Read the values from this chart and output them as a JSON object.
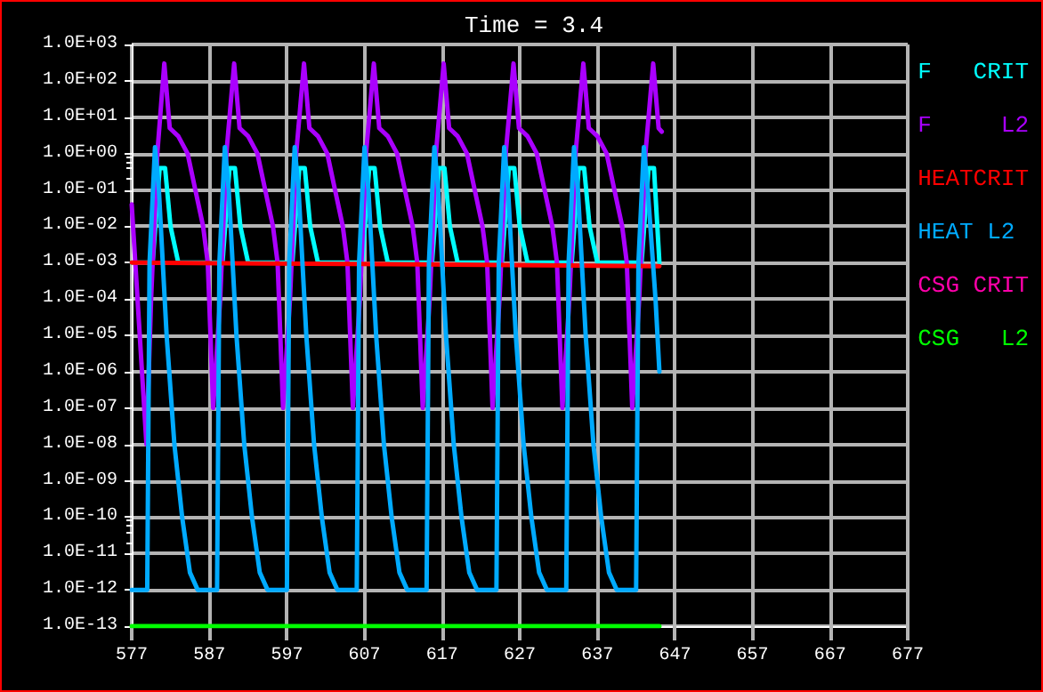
{
  "chart_data": {
    "type": "line",
    "title": "Time = 3.4",
    "log": "y",
    "grid": true,
    "legend": "right",
    "marker": "none",
    "line_style": "solid",
    "xlim": [
      577,
      677
    ],
    "xticks": [
      577,
      587,
      597,
      607,
      617,
      627,
      637,
      647,
      657,
      667,
      677
    ],
    "ylim": [
      1e-13,
      1000
    ],
    "yticks": [
      {
        "value": 1000,
        "label": "1.0E+03"
      },
      {
        "value": 100,
        "label": "1.0E+02"
      },
      {
        "value": 10,
        "label": "1.0E+01"
      },
      {
        "value": 1,
        "label": "1.0E+00"
      },
      {
        "value": 0.1,
        "label": "1.0E-01"
      },
      {
        "value": 0.01,
        "label": "1.0E-02"
      },
      {
        "value": 0.001,
        "label": "1.0E-03"
      },
      {
        "value": 0.0001,
        "label": "1.0E-04"
      },
      {
        "value": 1e-05,
        "label": "1.0E-05"
      },
      {
        "value": 1e-06,
        "label": "1.0E-06"
      },
      {
        "value": 1e-07,
        "label": "1.0E-07"
      },
      {
        "value": 1e-08,
        "label": "1.0E-08"
      },
      {
        "value": 1e-09,
        "label": "1.0E-09"
      },
      {
        "value": 1e-10,
        "label": "1.0E-10"
      },
      {
        "value": 1e-11,
        "label": "1.0E-11"
      },
      {
        "value": 1e-12,
        "label": "1.0E-12"
      },
      {
        "value": 1e-13,
        "label": "1.0E-13"
      }
    ],
    "series": [
      {
        "name": "F   CRIT",
        "color": "#00ffff",
        "x": [
          577,
          579.7,
          580.6,
          581.3,
          582,
          583,
          588.7,
          589.6,
          590.3,
          591,
          592,
          597.7,
          598.6,
          599.3,
          600,
          601,
          606.7,
          607.6,
          608.3,
          609,
          610,
          615.7,
          616.6,
          617.3,
          618,
          619,
          624.7,
          625.6,
          626.3,
          627,
          628,
          633.7,
          634.6,
          635.3,
          636,
          637,
          642.7,
          643.6,
          644.3,
          645
        ],
        "values": [
          0.001,
          0.001,
          0.4,
          0.4,
          0.01,
          0.001,
          0.001,
          0.4,
          0.4,
          0.01,
          0.001,
          0.001,
          0.4,
          0.4,
          0.01,
          0.001,
          0.001,
          0.4,
          0.4,
          0.01,
          0.001,
          0.001,
          0.4,
          0.4,
          0.01,
          0.001,
          0.001,
          0.4,
          0.4,
          0.01,
          0.001,
          0.001,
          0.4,
          0.4,
          0.01,
          0.001,
          0.001,
          0.4,
          0.4,
          0.001
        ]
      },
      {
        "name": "F     L2",
        "color": "#aa00ff",
        "x": [
          577,
          578.9,
          579.5,
          580.3,
          581.2,
          581.9,
          583,
          584.2,
          585.2,
          586.2,
          586.8,
          587.5,
          588.4,
          589.2,
          590.2,
          590.9,
          592,
          593.2,
          594.2,
          595.2,
          595.8,
          596.5,
          597.4,
          598.2,
          599.2,
          599.9,
          601,
          602.2,
          603.2,
          604.2,
          604.8,
          605.5,
          606.4,
          607.2,
          608.2,
          608.9,
          610,
          611.2,
          612.2,
          613.2,
          613.8,
          614.5,
          615.4,
          616.2,
          617.2,
          617.9,
          619,
          620.2,
          621.2,
          622.2,
          622.8,
          623.5,
          624.4,
          625.2,
          626.2,
          626.9,
          628,
          629.2,
          630.2,
          631.2,
          631.8,
          632.5,
          633.4,
          634.2,
          635.2,
          635.9,
          637,
          638.2,
          639.2,
          640.2,
          640.8,
          641.5,
          642.4,
          643.2,
          644.2,
          644.9,
          645.3
        ],
        "values": [
          0.04,
          1e-08,
          0.0001,
          1,
          300,
          5,
          3,
          1,
          0.1,
          0.01,
          0.001,
          1e-07,
          0.0001,
          1,
          300,
          5,
          3,
          1,
          0.1,
          0.01,
          0.001,
          1e-07,
          0.0001,
          1,
          300,
          5,
          3,
          1,
          0.1,
          0.01,
          0.001,
          1e-07,
          0.0001,
          1,
          300,
          5,
          3,
          1,
          0.1,
          0.01,
          0.001,
          1e-07,
          0.0001,
          1,
          300,
          5,
          3,
          1,
          0.1,
          0.01,
          0.001,
          1e-07,
          0.0001,
          1,
          300,
          5,
          3,
          1,
          0.1,
          0.01,
          0.001,
          1e-07,
          0.0001,
          1,
          300,
          5,
          3,
          1,
          0.1,
          0.01,
          0.001,
          1e-07,
          0.0001,
          1,
          300,
          5,
          4
        ]
      },
      {
        "name": "HEATCRIT",
        "color": "#ff0000",
        "x": [
          577,
          611,
          645
        ],
        "values": [
          0.001,
          0.0009,
          0.0008
        ]
      },
      {
        "name": "HEAT L2",
        "color": "#00aaff",
        "x": [
          577,
          579,
          579.3,
          580,
          580.5,
          581.5,
          582.5,
          583.5,
          584.5,
          585.5,
          588,
          588.3,
          589,
          589.5,
          590.5,
          591.5,
          592.5,
          593.5,
          594.5,
          597,
          597.3,
          598,
          598.5,
          599.5,
          600.5,
          601.5,
          602.5,
          603.5,
          606,
          606.3,
          607,
          607.5,
          608.5,
          609.5,
          610.5,
          611.5,
          612.5,
          615,
          615.3,
          616,
          616.5,
          617.5,
          618.5,
          619.5,
          620.5,
          621.5,
          624,
          624.3,
          625,
          625.5,
          626.5,
          627.5,
          628.5,
          629.5,
          630.5,
          633,
          633.3,
          634,
          634.5,
          635.5,
          636.5,
          637.5,
          638.5,
          639.5,
          642,
          642.3,
          643,
          643.5,
          644.5,
          645
        ],
        "values": [
          1e-12,
          1e-12,
          0.001,
          1.5,
          0.1,
          1e-05,
          1e-08,
          1e-10,
          3e-12,
          1e-12,
          1e-12,
          0.001,
          1.5,
          0.1,
          1e-05,
          1e-08,
          1e-10,
          3e-12,
          1e-12,
          1e-12,
          0.001,
          1.5,
          0.1,
          1e-05,
          1e-08,
          1e-10,
          3e-12,
          1e-12,
          1e-12,
          0.001,
          1.5,
          0.1,
          1e-05,
          1e-08,
          1e-10,
          3e-12,
          1e-12,
          1e-12,
          0.001,
          1.5,
          0.1,
          1e-05,
          1e-08,
          1e-10,
          3e-12,
          1e-12,
          1e-12,
          0.001,
          1.5,
          0.1,
          1e-05,
          1e-08,
          1e-10,
          3e-12,
          1e-12,
          1e-12,
          0.001,
          1.5,
          0.1,
          1e-05,
          1e-08,
          1e-10,
          3e-12,
          1e-12,
          1e-12,
          0.001,
          1.5,
          0.1,
          0.0001,
          1e-06
        ]
      },
      {
        "name": "CSG CRIT",
        "color": "#ff00aa"
      },
      {
        "name": "CSG   L2",
        "color": "#00ff00",
        "x": [
          577,
          645
        ],
        "values": [
          1e-13,
          1e-13
        ]
      }
    ]
  }
}
